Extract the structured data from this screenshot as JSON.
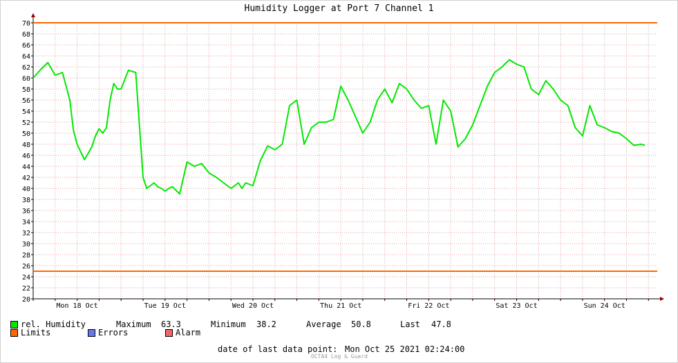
{
  "chart_data": {
    "type": "line",
    "title": "Humidity Logger at Port 7 Channel 1",
    "xlabel": "",
    "ylabel": "",
    "ylim": [
      20,
      70
    ],
    "y_ticks": [
      20,
      22,
      24,
      26,
      28,
      30,
      32,
      34,
      36,
      38,
      40,
      42,
      44,
      46,
      48,
      50,
      52,
      54,
      56,
      58,
      60,
      62,
      64,
      66,
      68,
      70
    ],
    "xlim_days": [
      "Mon 18 Oct 00:00",
      "Mon 25 Oct 02:24"
    ],
    "x_ticks": [
      "Mon 18 Oct",
      "Tue 19 Oct",
      "Wed 20 Oct",
      "Thu 21 Oct",
      "Fri 22 Oct",
      "Sat 23 Oct",
      "Sun 24 Oct"
    ],
    "grid": true,
    "limits": {
      "upper": 70,
      "lower": 25
    },
    "series": [
      {
        "name": "rel. Humidity",
        "color": "#00e800",
        "x_hours_from_start": [
          0,
          2,
          4,
          6,
          8,
          10,
          11,
          12,
          14,
          16,
          17,
          18,
          19,
          20,
          21,
          22,
          23,
          24,
          26,
          28,
          30,
          31,
          32,
          33,
          34,
          35,
          36,
          37,
          38,
          40,
          42,
          44,
          46,
          48,
          50,
          52,
          54,
          56,
          57,
          58,
          60,
          62,
          64,
          66,
          68,
          70,
          72,
          74,
          76,
          78,
          80,
          82,
          84,
          86,
          88,
          90,
          92,
          94,
          96,
          98,
          100,
          102,
          104,
          106,
          108,
          110,
          112,
          114,
          116,
          118,
          120,
          122,
          124,
          126,
          128,
          130,
          132,
          134,
          136,
          138,
          140,
          142,
          144,
          146,
          148,
          150,
          152,
          154,
          156,
          158,
          160,
          162,
          164,
          166,
          167
        ],
        "values": [
          60,
          61.5,
          62.8,
          60.5,
          61,
          56,
          50.5,
          48,
          45.2,
          47.5,
          49.5,
          50.8,
          50,
          51,
          56,
          59,
          58,
          58,
          61.4,
          61,
          42,
          40,
          40.5,
          41,
          40.3,
          40,
          39.5,
          40,
          40.3,
          39,
          44.8,
          44,
          44.5,
          42.8,
          42,
          41,
          40,
          41,
          40,
          41,
          40.5,
          45,
          47.7,
          47,
          48,
          55,
          56,
          48,
          51,
          52,
          52,
          52.5,
          58.5,
          56,
          53,
          50,
          52,
          56,
          58,
          55.5,
          59,
          58,
          56,
          54.5,
          55,
          48,
          56,
          54,
          47.5,
          49,
          51.5,
          55,
          58.5,
          61,
          62,
          63.3,
          62.5,
          62,
          58,
          57,
          59.5,
          58,
          56,
          55,
          51,
          49.5,
          55,
          51.5,
          51,
          50.3,
          50,
          49,
          47.8,
          48,
          47.8
        ]
      }
    ]
  },
  "legend": {
    "series_label": "rel. Humidity",
    "max_label": "Maximum",
    "max_value": "63.3",
    "min_label": "Minimum",
    "min_value": "38.2",
    "avg_label": "Average",
    "avg_value": "50.8",
    "last_label": "Last",
    "last_value": "47.8",
    "limits_label": "Limits",
    "errors_label": "Errors",
    "alarm_label": "Alarm"
  },
  "colors": {
    "series": "#00e800",
    "limits": "#ff6600",
    "errors": "#6677ee",
    "alarm": "#ee6666",
    "grid": "#e0a0a0",
    "axis": "#000000"
  },
  "footer": {
    "last_point_label": "date of last data point:",
    "last_point_value": "Mon Oct 25 2021 02:24:00",
    "credit": "OCTA4 Log & Guard"
  }
}
